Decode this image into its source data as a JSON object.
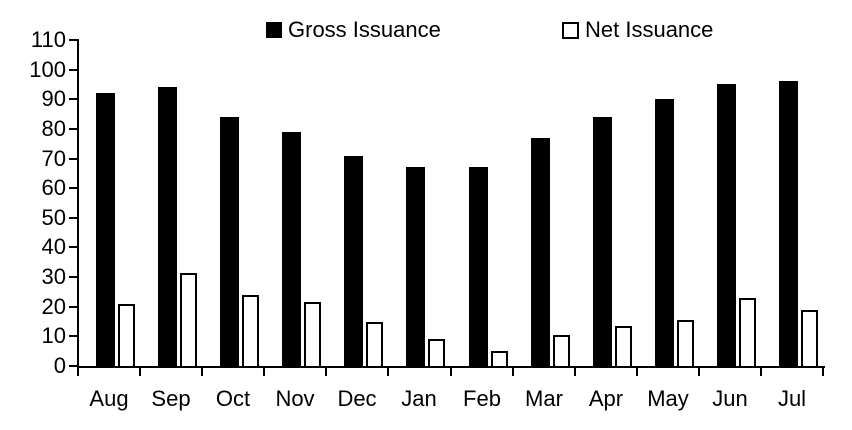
{
  "chart_data": {
    "type": "bar",
    "title": "",
    "xlabel": "",
    "ylabel": "",
    "categories": [
      "Aug",
      "Sep",
      "Oct",
      "Nov",
      "Dec",
      "Jan",
      "Feb",
      "Mar",
      "Apr",
      "May",
      "Jun",
      "Jul"
    ],
    "series": [
      {
        "name": "Gross Issuance",
        "style": "solid-black",
        "values": [
          92,
          94,
          84,
          79,
          71,
          67,
          67,
          77,
          84,
          90,
          95,
          96
        ]
      },
      {
        "name": "Net Issuance",
        "style": "white-outlined",
        "values": [
          21,
          31.5,
          24,
          21.5,
          15,
          9,
          5,
          10.5,
          13.5,
          15.5,
          23,
          19
        ]
      }
    ],
    "ylim": [
      0,
      110
    ],
    "yticks": [
      0,
      10,
      20,
      30,
      40,
      50,
      60,
      70,
      80,
      90,
      100,
      110
    ],
    "grid": false,
    "legend_position": "top"
  },
  "legend": {
    "items": [
      {
        "label": "Gross Issuance",
        "swatch": "filled-black-square"
      },
      {
        "label": "Net Issuance",
        "swatch": "outlined-white-square"
      }
    ]
  },
  "colors": {
    "background": "#ffffff",
    "axis": "#000000",
    "text": "#000000",
    "gross_bar_fill": "#000000",
    "net_bar_fill": "#ffffff",
    "net_bar_border": "#000000"
  }
}
